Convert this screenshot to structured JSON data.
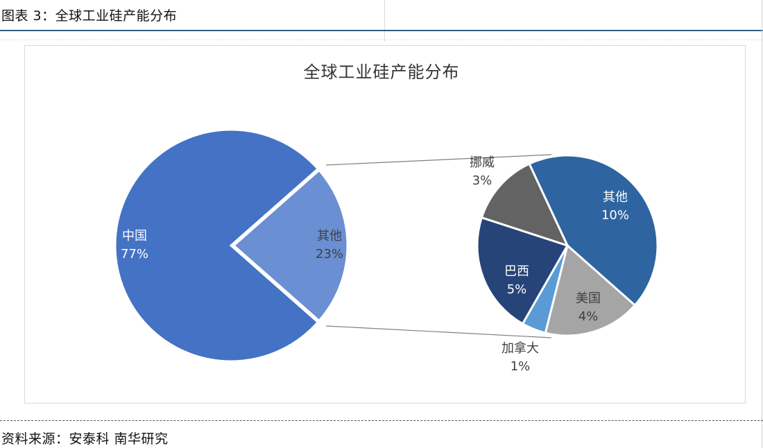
{
  "figure": {
    "caption": "图表 3：全球工业硅产能分布",
    "source": "资料来源：安泰科 南华研究"
  },
  "chart_data": {
    "type": "pie",
    "title": "全球工业硅产能分布",
    "subtype": "pie-of-pie",
    "main_pie": {
      "categories": [
        "中国",
        "其他"
      ],
      "values": [
        77,
        23
      ],
      "labels": [
        "77%",
        "23%"
      ],
      "colors": [
        "#4472C4",
        "#6A8FD2"
      ]
    },
    "secondary_pie": {
      "breakdown_of": "其他",
      "categories": [
        "其他",
        "美国",
        "加拿大",
        "巴西",
        "挪威"
      ],
      "values": [
        10,
        4,
        1,
        5,
        3
      ],
      "labels": [
        "10%",
        "4%",
        "1%",
        "5%",
        "3%"
      ],
      "colors": [
        "#2E64A0",
        "#A5A5A5",
        "#5B9BD5",
        "#264478",
        "#636363"
      ]
    },
    "legend": "none",
    "data_labels": "category and percentage"
  },
  "labels": {
    "china": {
      "name": "中国",
      "pct": "77%"
    },
    "others_main": {
      "name": "其他",
      "pct": "23%"
    },
    "others_sub": {
      "name": "其他",
      "pct": "10%"
    },
    "usa": {
      "name": "美国",
      "pct": "4%"
    },
    "canada": {
      "name": "加拿大",
      "pct": "1%"
    },
    "brazil": {
      "name": "巴西",
      "pct": "5%"
    },
    "norway": {
      "name": "挪威",
      "pct": "3%"
    }
  }
}
